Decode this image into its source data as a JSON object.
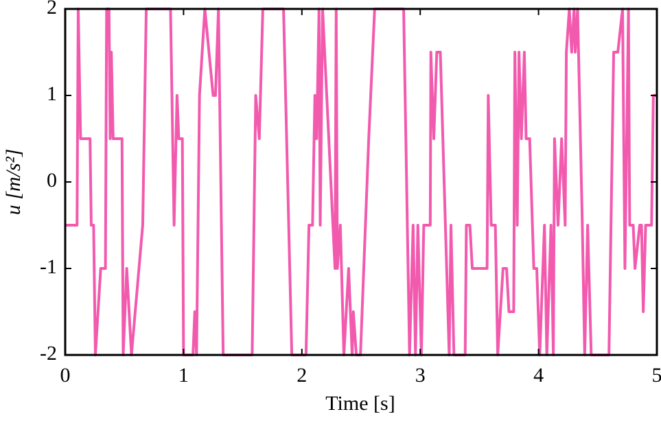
{
  "chart_data": {
    "type": "line",
    "xlabel": "Time [s]",
    "ylabel": "u [m/s²]",
    "xlim": [
      0,
      5
    ],
    "ylim": [
      -2,
      2
    ],
    "xticks": [
      0,
      1,
      2,
      3,
      4,
      5
    ],
    "yticks": [
      -2,
      -1,
      0,
      1,
      2
    ],
    "series": [
      {
        "color": "#f25aae",
        "x": [
          0,
          0.1,
          0.11,
          0.13,
          0.21,
          0.22,
          0.24,
          0.255,
          0.3,
          0.34,
          0.35,
          0.37,
          0.38,
          0.39,
          0.405,
          0.48,
          0.49,
          0.52,
          0.56,
          0.655,
          0.685,
          0.89,
          0.92,
          0.945,
          0.96,
          0.99,
          1.0,
          1.08,
          1.095,
          1.11,
          1.135,
          1.18,
          1.25,
          1.27,
          1.295,
          1.335,
          1.58,
          1.61,
          1.64,
          1.67,
          1.845,
          1.915,
          2.035,
          2.06,
          2.09,
          2.11,
          2.125,
          2.145,
          2.155,
          2.175,
          2.28,
          2.29,
          2.3,
          2.325,
          2.355,
          2.395,
          2.425,
          2.435,
          2.46,
          2.495,
          2.565,
          2.615,
          2.86,
          2.91,
          2.94,
          2.96,
          2.98,
          3.01,
          3.03,
          3.085,
          3.09,
          3.115,
          3.14,
          3.17,
          3.245,
          3.26,
          3.285,
          3.38,
          3.39,
          3.42,
          3.44,
          3.565,
          3.575,
          3.6,
          3.635,
          3.655,
          3.7,
          3.73,
          3.75,
          3.79,
          3.8,
          3.82,
          3.835,
          3.855,
          3.88,
          3.895,
          3.925,
          3.96,
          3.985,
          4.01,
          4.05,
          4.07,
          4.105,
          4.125,
          4.135,
          4.165,
          4.195,
          4.225,
          4.235,
          4.26,
          4.28,
          4.3,
          4.31,
          4.33,
          4.37,
          4.39,
          4.415,
          4.445,
          4.595,
          4.635,
          4.67,
          4.71,
          4.73,
          4.76,
          4.77,
          4.8,
          4.815,
          4.855,
          4.87,
          4.885,
          4.905,
          4.955,
          4.97,
          5.0
        ],
        "values": [
          -0.5,
          -0.5,
          2,
          0.5,
          0.5,
          -0.5,
          -0.5,
          -2,
          -1,
          -1,
          2,
          2,
          0.5,
          1.5,
          0.5,
          0.5,
          -2,
          -1,
          -2,
          -0.5,
          2,
          2,
          -0.5,
          1,
          0.5,
          0.5,
          -2,
          -2,
          -1.5,
          -2,
          1,
          2,
          1,
          1,
          2,
          -2,
          -2,
          1,
          0.5,
          2,
          2,
          -2,
          -2,
          -0.5,
          -0.5,
          1,
          0.5,
          2,
          -0.5,
          2,
          -1,
          2,
          -1,
          -0.5,
          -2,
          -1,
          -2,
          -1.5,
          -2,
          -2,
          0.5,
          2,
          2,
          -2,
          -0.5,
          -2,
          -0.5,
          -2,
          -0.5,
          -0.5,
          1.5,
          0.5,
          1.5,
          1.5,
          -2,
          -0.5,
          -2,
          -2,
          -0.5,
          -0.5,
          -1,
          -1,
          1,
          -0.5,
          -0.5,
          -2,
          -1,
          -1,
          -1.5,
          -1.5,
          1.5,
          -0.5,
          1.5,
          0.5,
          1.5,
          0.5,
          0.5,
          -1,
          -1,
          -2,
          -0.5,
          -2,
          -0.5,
          -2,
          0.5,
          -0.5,
          0.5,
          -0.5,
          1.5,
          2,
          1.5,
          2,
          1.5,
          2,
          -0.5,
          -2,
          -0.5,
          -2,
          -2,
          1.5,
          1.5,
          2,
          -1,
          2,
          -0.5,
          -0.5,
          -1,
          -0.5,
          -0.5,
          -1.5,
          -0.5,
          -0.5,
          1,
          1
        ]
      }
    ]
  }
}
